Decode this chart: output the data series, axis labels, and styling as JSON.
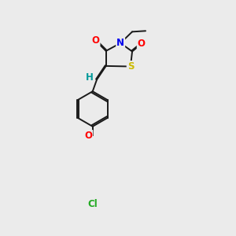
{
  "bg_color": "#ebebeb",
  "bond_color": "#1a1a1a",
  "atom_colors": {
    "O": "#ff0000",
    "N": "#0000ee",
    "S": "#ccbb00",
    "Cl": "#22aa22",
    "H": "#009999",
    "C": "#1a1a1a"
  },
  "lw": 1.4,
  "dbo": 0.055,
  "fs": 8.5
}
